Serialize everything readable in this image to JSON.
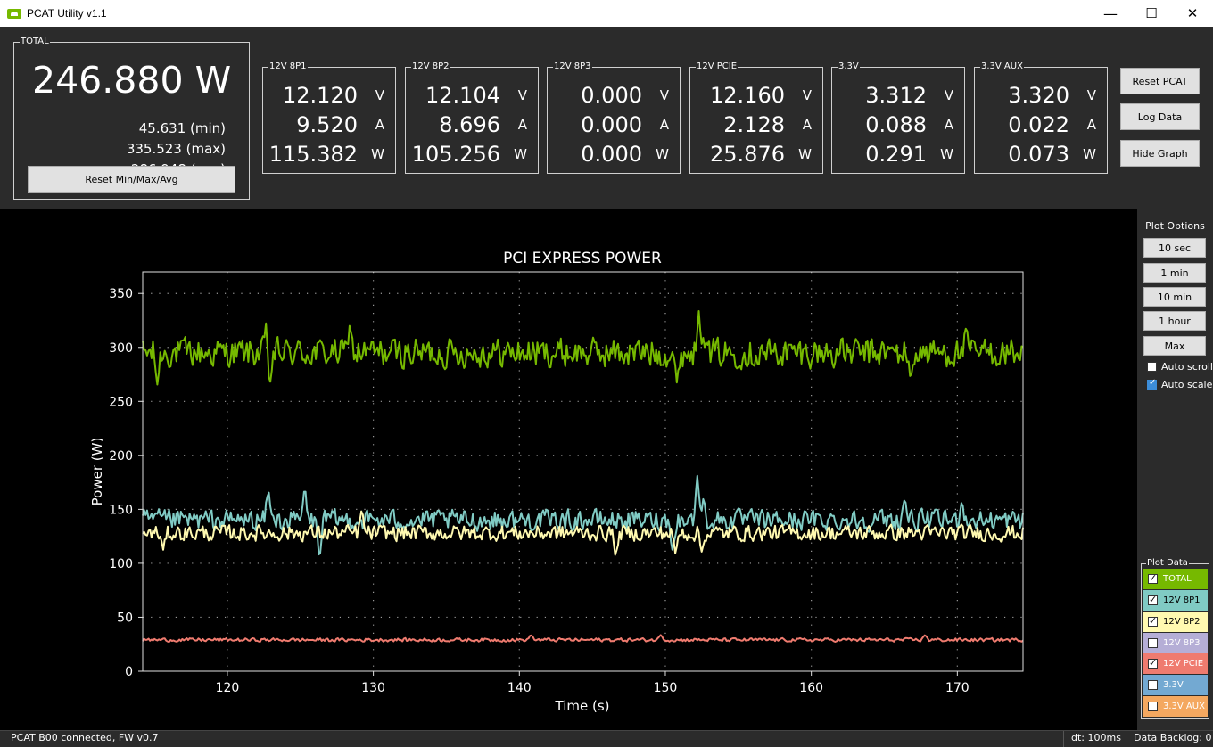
{
  "window": {
    "title": "PCAT Utility v1.1",
    "minimize": "—",
    "maximize": "☐",
    "close": "✕"
  },
  "total": {
    "label": "TOTAL",
    "power": "246.880 W",
    "min": "45.631 (min)",
    "max": "335.523 (max)",
    "avg": "286.948 (avg)",
    "reset_label": "Reset Min/Max/Avg"
  },
  "rails": [
    {
      "label": "12V 8P1",
      "volts": "12.120",
      "amps": "9.520",
      "watts": "115.382"
    },
    {
      "label": "12V 8P2",
      "volts": "12.104",
      "amps": "8.696",
      "watts": "105.256"
    },
    {
      "label": "12V 8P3",
      "volts": "0.000",
      "amps": "0.000",
      "watts": "0.000"
    },
    {
      "label": "12V PCIE",
      "volts": "12.160",
      "amps": "2.128",
      "watts": "25.876"
    },
    {
      "label": "3.3V",
      "volts": "3.312",
      "amps": "0.088",
      "watts": "0.291"
    },
    {
      "label": "3.3V AUX",
      "volts": "3.320",
      "amps": "0.022",
      "watts": "0.073"
    }
  ],
  "units": {
    "v": "V",
    "a": "A",
    "w": "W"
  },
  "side_buttons": {
    "reset_pcat": "Reset PCAT",
    "log_data": "Log Data",
    "hide_graph": "Hide Graph"
  },
  "plot_options": {
    "title": "Plot Options",
    "buttons": [
      "10 sec",
      "1 min",
      "10 min",
      "1 hour",
      "Max"
    ],
    "auto_scroll": {
      "label": "Auto scroll",
      "checked": false
    },
    "auto_scale": {
      "label": "Auto scale",
      "checked": true
    }
  },
  "plot_data": {
    "title": "Plot Data",
    "items": [
      {
        "label": "TOTAL",
        "checked": true,
        "color": "#76b900"
      },
      {
        "label": "12V 8P1",
        "checked": true,
        "color": "#80cbc4"
      },
      {
        "label": "12V 8P2",
        "checked": true,
        "color": "#fff9b0"
      },
      {
        "label": "12V 8P3",
        "checked": false,
        "color": "#b5aed6"
      },
      {
        "label": "12V PCIE",
        "checked": true,
        "color": "#ef7b6f"
      },
      {
        "label": "3.3V",
        "checked": false,
        "color": "#73a9d2"
      },
      {
        "label": "3.3V AUX",
        "checked": false,
        "color": "#f4a860"
      }
    ]
  },
  "status": {
    "connection": "PCAT B00 connected, FW v0.7",
    "dt": "dt: 100ms",
    "backlog": "Data Backlog: 0"
  },
  "chart_data": {
    "type": "line",
    "title": "PCI EXPRESS POWER",
    "xlabel": "Time (s)",
    "ylabel": "Power (W)",
    "xlim": [
      114.2,
      174.5
    ],
    "ylim": [
      0,
      370
    ],
    "xticks": [
      120,
      130,
      140,
      150,
      160,
      170
    ],
    "yticks": [
      0,
      50,
      100,
      150,
      200,
      250,
      300,
      350
    ],
    "grid": true,
    "series": [
      {
        "name": "TOTAL",
        "color": "#76b900",
        "mean": 295,
        "amp": 13,
        "spikes": [
          [
            115.2,
            265
          ],
          [
            122.7,
            328
          ],
          [
            122.9,
            262
          ],
          [
            128.4,
            323
          ],
          [
            150.8,
            265
          ],
          [
            152.3,
            336
          ],
          [
            152.6,
            310
          ],
          [
            166.8,
            268
          ],
          [
            170.6,
            318
          ]
        ]
      },
      {
        "name": "12V 8P1",
        "color": "#80cbc4",
        "mean": 140,
        "amp": 9,
        "spikes": [
          [
            122.8,
            170
          ],
          [
            125.3,
            172
          ],
          [
            126.3,
            102
          ],
          [
            150.5,
            110
          ],
          [
            152.2,
            183
          ],
          [
            152.6,
            160
          ],
          [
            166.4,
            162
          ],
          [
            170.3,
            158
          ]
        ]
      },
      {
        "name": "12V 8P2",
        "color": "#fff9b0",
        "mean": 128,
        "amp": 7,
        "spikes": [
          [
            115.6,
            112
          ],
          [
            129.2,
            150
          ],
          [
            146.6,
            105
          ],
          [
            150.7,
            108
          ],
          [
            152.5,
            110
          ]
        ]
      },
      {
        "name": "12V PCIE",
        "color": "#ef7b6f",
        "mean": 29,
        "amp": 1.5,
        "spikes": [
          [
            140.8,
            34
          ],
          [
            149.7,
            34
          ],
          [
            167.8,
            34
          ]
        ]
      }
    ]
  }
}
